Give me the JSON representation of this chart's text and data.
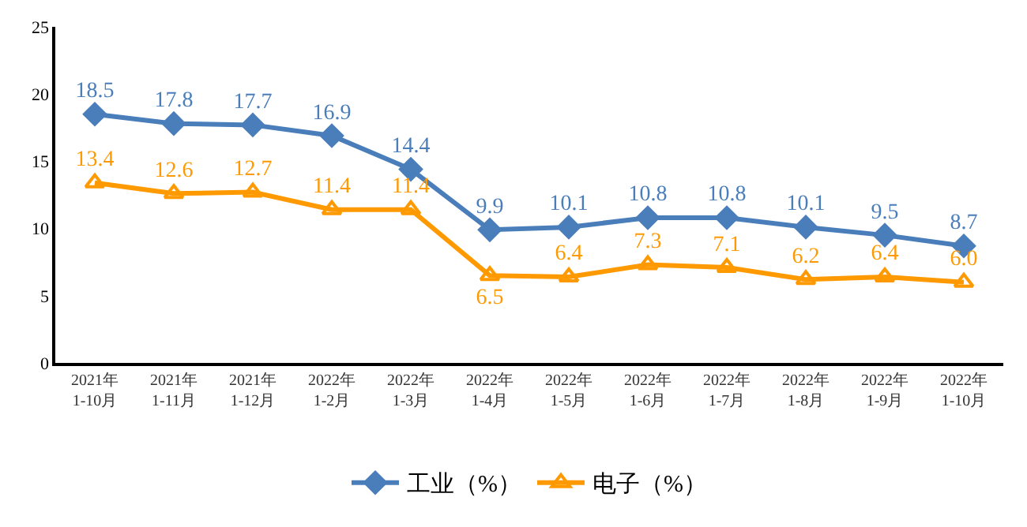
{
  "chart_data": {
    "type": "line",
    "categories": [
      "2021年\n1-10月",
      "2021年\n1-11月",
      "2021年\n1-12月",
      "2022年\n1-2月",
      "2022年\n1-3月",
      "2022年\n1-4月",
      "2022年\n1-5月",
      "2022年\n1-6月",
      "2022年\n1-7月",
      "2022年\n1-8月",
      "2022年\n1-9月",
      "2022年\n1-10月"
    ],
    "series": [
      {
        "name": "工业（%）",
        "color": "#4a7ebb",
        "marker": "diamond",
        "values": [
          18.5,
          17.8,
          17.7,
          16.9,
          14.4,
          9.9,
          10.1,
          10.8,
          10.8,
          10.1,
          9.5,
          8.7
        ],
        "value_labels": [
          "18.5",
          "17.8",
          "17.7",
          "16.9",
          "14.4",
          "9.9",
          "10.1",
          "10.8",
          "10.8",
          "10.1",
          "9.5",
          "8.7"
        ]
      },
      {
        "name": "电子（%）",
        "color": "#ff9900",
        "marker": "triangle",
        "values": [
          13.4,
          12.6,
          12.7,
          11.4,
          11.4,
          6.5,
          6.4,
          7.3,
          7.1,
          6.2,
          6.4,
          6.0
        ],
        "value_labels": [
          "13.4",
          "12.6",
          "12.7",
          "11.4",
          "11.4",
          "6.5",
          "6.4",
          "7.3",
          "7.1",
          "6.2",
          "6.4",
          "6.0"
        ]
      }
    ],
    "ylim": [
      0,
      25
    ],
    "yticks": [
      0,
      5,
      10,
      15,
      20,
      25
    ],
    "legend": "bottom",
    "line_style": "solid"
  }
}
